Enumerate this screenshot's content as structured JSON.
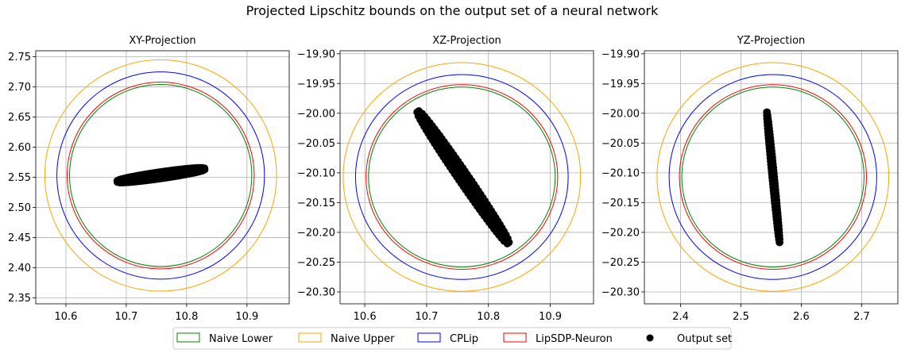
{
  "chart_data": [
    {
      "type": "scatter",
      "suptitle": "Projected Lipschitz bounds on the output set of a neural network",
      "title": "XY-Projection",
      "xlabel": "",
      "ylabel": "",
      "xlim": [
        10.55,
        10.97
      ],
      "ylim": [
        2.34,
        2.76
      ],
      "xticks": [
        10.6,
        10.7,
        10.8,
        10.9
      ],
      "yticks": [
        2.35,
        2.4,
        2.45,
        2.5,
        2.55,
        2.6,
        2.65,
        2.7,
        2.75
      ],
      "xtick_labels": [
        "10.6",
        "10.7",
        "10.8",
        "10.9"
      ],
      "ytick_labels": [
        "2.35",
        "2.40",
        "2.45",
        "2.50",
        "2.55",
        "2.60",
        "2.65",
        "2.70",
        "2.75"
      ],
      "grid": true,
      "center": [
        10.757,
        2.553
      ],
      "circles": [
        {
          "name": "Naive Lower",
          "radius": 0.151
        },
        {
          "name": "Naive Upper",
          "radius": 0.192
        },
        {
          "name": "CPLip",
          "radius": 0.172
        },
        {
          "name": "LipSDP-Neuron",
          "radius": 0.155
        }
      ],
      "output_set": {
        "name": "Output set",
        "start": [
          10.685,
          2.543
        ],
        "end": [
          10.83,
          2.564
        ],
        "width": 0.011
      }
    },
    {
      "type": "scatter",
      "title": "XZ-Projection",
      "xlabel": "",
      "ylabel": "",
      "xlim": [
        10.56,
        10.97
      ],
      "ylim": [
        -20.32,
        -19.895
      ],
      "xticks": [
        10.6,
        10.7,
        10.8,
        10.9
      ],
      "yticks": [
        -19.9,
        -19.95,
        -20.0,
        -20.05,
        -20.1,
        -20.15,
        -20.2,
        -20.25,
        -20.3
      ],
      "xtick_labels": [
        "10.6",
        "10.7",
        "10.8",
        "10.9"
      ],
      "ytick_labels": [
        "−19.90",
        "−19.95",
        "−20.00",
        "−20.05",
        "−20.10",
        "−20.15",
        "−20.20",
        "−20.25",
        "−20.30"
      ],
      "grid": true,
      "center": [
        10.757,
        -20.107
      ],
      "circles": [
        {
          "name": "Naive Lower",
          "radius": 0.151
        },
        {
          "name": "Naive Upper",
          "radius": 0.192
        },
        {
          "name": "CPLip",
          "radius": 0.172
        },
        {
          "name": "LipSDP-Neuron",
          "radius": 0.155
        }
      ],
      "output_set": {
        "name": "Output set",
        "start": [
          10.686,
          -19.997
        ],
        "end": [
          10.832,
          -20.218
        ],
        "width": 0.016
      }
    },
    {
      "type": "scatter",
      "title": "YZ-Projection",
      "xlabel": "",
      "ylabel": "",
      "xlim": [
        2.34,
        2.76
      ],
      "ylim": [
        -20.32,
        -19.895
      ],
      "xticks": [
        2.4,
        2.5,
        2.6,
        2.7
      ],
      "yticks": [
        -19.9,
        -19.95,
        -20.0,
        -20.05,
        -20.1,
        -20.15,
        -20.2,
        -20.25,
        -20.3
      ],
      "xtick_labels": [
        "2.4",
        "2.5",
        "2.6",
        "2.7"
      ],
      "ytick_labels": [
        "−19.90",
        "−19.95",
        "−20.00",
        "−20.05",
        "−20.10",
        "−20.15",
        "−20.20",
        "−20.25",
        "−20.30"
      ],
      "grid": true,
      "center": [
        2.553,
        -20.107
      ],
      "circles": [
        {
          "name": "Naive Lower",
          "radius": 0.151
        },
        {
          "name": "Naive Upper",
          "radius": 0.192
        },
        {
          "name": "CPLip",
          "radius": 0.172
        },
        {
          "name": "LipSDP-Neuron",
          "radius": 0.155
        }
      ],
      "output_set": {
        "name": "Output set",
        "start": [
          2.543,
          -19.998
        ],
        "end": [
          2.564,
          -20.217
        ],
        "width": 0.004
      }
    }
  ],
  "legend": {
    "placement": "bottom-center",
    "items": [
      {
        "label": "Naive Lower",
        "color": "#008000",
        "kind": "circle"
      },
      {
        "label": "Naive Upper",
        "color": "#ffa500",
        "kind": "circle"
      },
      {
        "label": "CPLip",
        "color": "#0000ff",
        "kind": "circle"
      },
      {
        "label": "LipSDP-Neuron",
        "color": "#ff0000",
        "kind": "circle"
      },
      {
        "label": "Output set",
        "color": "#000000",
        "kind": "marker"
      }
    ]
  }
}
